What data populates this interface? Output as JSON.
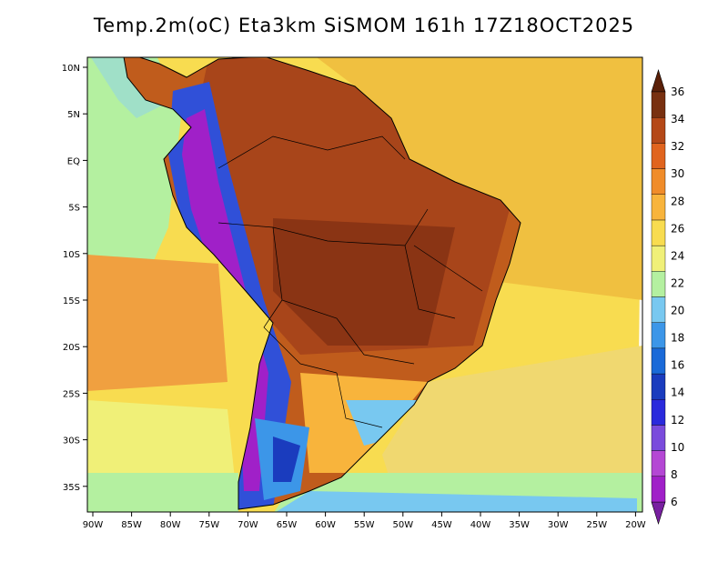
{
  "title": "Temp.2m(oC) Eta3km SiSMOM 161h 17Z18OCT2025",
  "map": {
    "lat_ticks": [
      "10N",
      "5N",
      "EQ",
      "5S",
      "10S",
      "15S",
      "20S",
      "25S",
      "30S",
      "35S"
    ],
    "lon_ticks": [
      "90W",
      "85W",
      "80W",
      "75W",
      "70W",
      "65W",
      "60W",
      "55W",
      "50W",
      "45W",
      "40W",
      "35W",
      "30W",
      "25W",
      "20W"
    ]
  },
  "colorbar": {
    "labels": [
      "6",
      "8",
      "10",
      "12",
      "14",
      "16",
      "18",
      "20",
      "22",
      "24",
      "26",
      "28",
      "30",
      "32",
      "34",
      "36"
    ],
    "colors": [
      "#a020c8",
      "#b447d4",
      "#7a4bdc",
      "#2a2adc",
      "#1a3cbe",
      "#1a6ad8",
      "#3c96e8",
      "#78c8f0",
      "#b4f0a0",
      "#f0f078",
      "#f8dc50",
      "#f8b43c",
      "#f08c2a",
      "#e0641e",
      "#b44818",
      "#783010"
    ],
    "min_color": "#7820a0",
    "max_color": "#5a2008"
  }
}
